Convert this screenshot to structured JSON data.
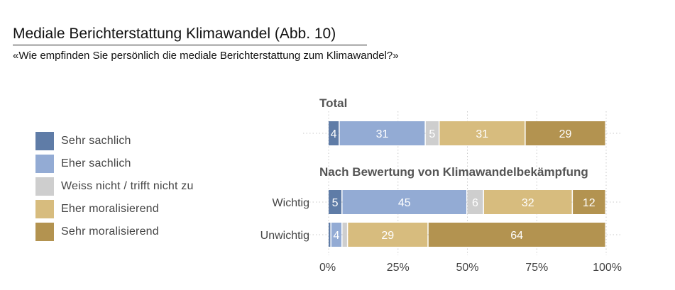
{
  "title": "Mediale Berichterstattung Klimawandel  (Abb. 10)",
  "subtitle": "«Wie empfinden Sie persönlich die mediale Berichterstattung zum Klimawandel?»",
  "colors": {
    "sehr_sachlich": "#5f7ca7",
    "eher_sachlich": "#93abd4",
    "weiss_nicht": "#cecece",
    "eher_moralisierend": "#d7bc7e",
    "sehr_moralisierend": "#b39350"
  },
  "chart_data": {
    "type": "bar",
    "orientation": "horizontal",
    "stacked": true,
    "xlim": [
      0,
      100
    ],
    "x_ticks": [
      "0%",
      "25%",
      "50%",
      "75%",
      "100%"
    ],
    "x_tick_values": [
      0,
      25,
      50,
      75,
      100
    ],
    "grid": true,
    "legend_position": "left",
    "series": [
      {
        "name": "Sehr sachlich",
        "color": "#5f7ca7"
      },
      {
        "name": "Eher sachlich",
        "color": "#93abd4"
      },
      {
        "name": "Weiss nicht / trifft nicht zu",
        "color": "#cecece"
      },
      {
        "name": "Eher moralisierend",
        "color": "#d7bc7e"
      },
      {
        "name": "Sehr moralisierend",
        "color": "#b39350"
      }
    ],
    "groups": [
      {
        "heading": "Total",
        "rows": [
          {
            "label": "",
            "values": [
              4,
              31,
              5,
              31,
              29
            ],
            "labels": [
              "4",
              "31",
              "5",
              "31",
              "29"
            ]
          }
        ]
      },
      {
        "heading": "Nach Bewertung von Klimawandelbekämpfung",
        "rows": [
          {
            "label": "Wichtig",
            "values": [
              5,
              45,
              6,
              32,
              12
            ],
            "labels": [
              "5",
              "45",
              "6",
              "32",
              "12"
            ]
          },
          {
            "label": "Unwichtig",
            "values": [
              1,
              4,
              2,
              29,
              64
            ],
            "labels": [
              "",
              "4",
              "",
              "29",
              "64"
            ]
          }
        ]
      }
    ]
  }
}
